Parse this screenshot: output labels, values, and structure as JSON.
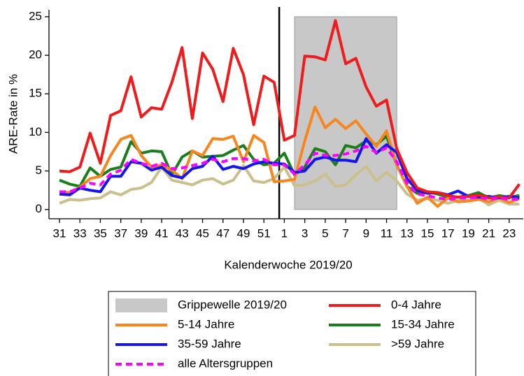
{
  "chart_data": {
    "type": "line",
    "y_label": "ARE-Rate in %",
    "x_label": "Kalenderwoche 2019/20",
    "categories": [
      "31",
      null,
      "33",
      null,
      "35",
      null,
      "37",
      null,
      "39",
      null,
      "41",
      null,
      "43",
      null,
      "45",
      null,
      "47",
      null,
      "49",
      null,
      "51",
      null,
      "1",
      null,
      "3",
      null,
      "5",
      null,
      "7",
      null,
      "9",
      null,
      "11",
      null,
      "13",
      null,
      "15",
      null,
      "17",
      null,
      "19",
      null,
      "21",
      null,
      "23",
      null
    ],
    "ylim": [
      -1.2,
      25.9
    ],
    "yticks": [
      0,
      5,
      10,
      15,
      20,
      25
    ],
    "legend": "bottom",
    "band": {
      "name": "Grippewelle 2019/20",
      "color": "#c8c8c8",
      "x_range": [
        23,
        33
      ],
      "y_range": [
        0,
        25
      ]
    },
    "series": [
      {
        "name": "0-4 Jahre",
        "color": "#ee1c1c",
        "values": [
          5.0,
          4.9,
          5.5,
          9.9,
          6.0,
          12.2,
          12.8,
          17.2,
          12.0,
          13.2,
          13.0,
          16.5,
          21.0,
          11.8,
          20.3,
          18.2,
          14.0,
          20.9,
          17.5,
          11.0,
          17.3,
          16.5,
          9.0,
          9.6,
          19.9,
          19.8,
          19.4,
          24.5,
          18.9,
          19.6,
          15.9,
          13.4,
          14.2,
          7.9,
          4.8,
          2.8,
          2.3,
          2.2,
          1.8,
          1.6,
          1.7,
          1.9,
          1.5,
          1.6,
          1.5,
          3.3
        ]
      },
      {
        "name": "5-14 Jahre",
        "color": "#f8861e",
        "values": [
          2.3,
          2.2,
          2.9,
          4.0,
          4.3,
          7.0,
          9.1,
          9.6,
          7.0,
          5.5,
          5.8,
          5.1,
          4.0,
          7.6,
          7.0,
          9.2,
          9.1,
          9.5,
          6.2,
          9.6,
          8.7,
          3.6,
          3.7,
          3.9,
          8.9,
          13.3,
          10.6,
          11.7,
          10.5,
          11.5,
          9.8,
          8.2,
          10.2,
          5.8,
          3.0,
          0.8,
          1.6,
          0.4,
          1.5,
          1.0,
          1.1,
          1.3,
          1.0,
          1.5,
          0.9,
          1.4
        ]
      },
      {
        "name": "15-34 Jahre",
        "color": "#1a7f1a",
        "values": [
          3.8,
          3.3,
          3.0,
          5.4,
          4.3,
          5.2,
          5.5,
          8.8,
          7.3,
          7.6,
          7.5,
          4.5,
          6.8,
          7.6,
          6.8,
          6.9,
          7.0,
          7.7,
          8.3,
          6.5,
          5.8,
          6.0,
          7.3,
          4.5,
          5.5,
          7.9,
          7.5,
          5.8,
          8.3,
          8.0,
          8.9,
          8.4,
          9.5,
          5.8,
          3.0,
          2.1,
          2.3,
          2.0,
          1.6,
          1.6,
          1.8,
          2.2,
          1.5,
          1.8,
          1.6,
          1.8
        ]
      },
      {
        "name": "35-59 Jahre",
        "color": "#1515f0",
        "values": [
          2.0,
          1.9,
          2.8,
          2.5,
          2.3,
          4.3,
          4.3,
          6.2,
          6.0,
          5.1,
          5.5,
          4.4,
          4.1,
          5.3,
          5.6,
          6.9,
          5.2,
          5.6,
          5.3,
          5.9,
          6.2,
          6.0,
          5.9,
          4.8,
          5.0,
          6.5,
          6.8,
          6.4,
          6.4,
          6.2,
          9.2,
          7.3,
          8.4,
          7.4,
          4.0,
          2.5,
          2.1,
          2.2,
          1.9,
          2.4,
          1.7,
          1.6,
          1.7,
          1.5,
          1.7,
          1.5
        ]
      },
      {
        "name": ">59 Jahre",
        "color": "#cbbf8c",
        "values": [
          0.8,
          1.3,
          1.2,
          1.4,
          1.5,
          2.3,
          1.9,
          2.6,
          2.8,
          3.5,
          5.5,
          3.8,
          3.5,
          3.2,
          3.8,
          4.0,
          3.3,
          3.8,
          5.7,
          3.7,
          3.5,
          4.0,
          5.5,
          3.1,
          3.2,
          3.7,
          4.6,
          3.0,
          3.2,
          4.5,
          5.6,
          3.7,
          4.8,
          3.7,
          2.0,
          1.2,
          1.4,
          1.2,
          0.8,
          1.2,
          1.2,
          1.5,
          0.6,
          1.2,
          0.7,
          0.7
        ]
      },
      {
        "name": "alle Altersgruppen",
        "color": "#ff00ff",
        "dashed": true,
        "values": [
          2.3,
          2.3,
          2.8,
          3.4,
          3.2,
          4.6,
          5.1,
          6.5,
          6.0,
          5.6,
          6.0,
          5.3,
          5.4,
          5.7,
          6.0,
          6.5,
          6.2,
          6.6,
          6.6,
          6.3,
          6.5,
          5.8,
          5.8,
          4.6,
          5.8,
          7.3,
          7.0,
          7.0,
          7.2,
          7.6,
          8.2,
          7.4,
          8.0,
          6.2,
          3.4,
          2.0,
          1.8,
          1.5,
          1.3,
          1.5,
          1.5,
          1.6,
          1.3,
          1.5,
          1.3,
          1.4
        ]
      }
    ]
  }
}
